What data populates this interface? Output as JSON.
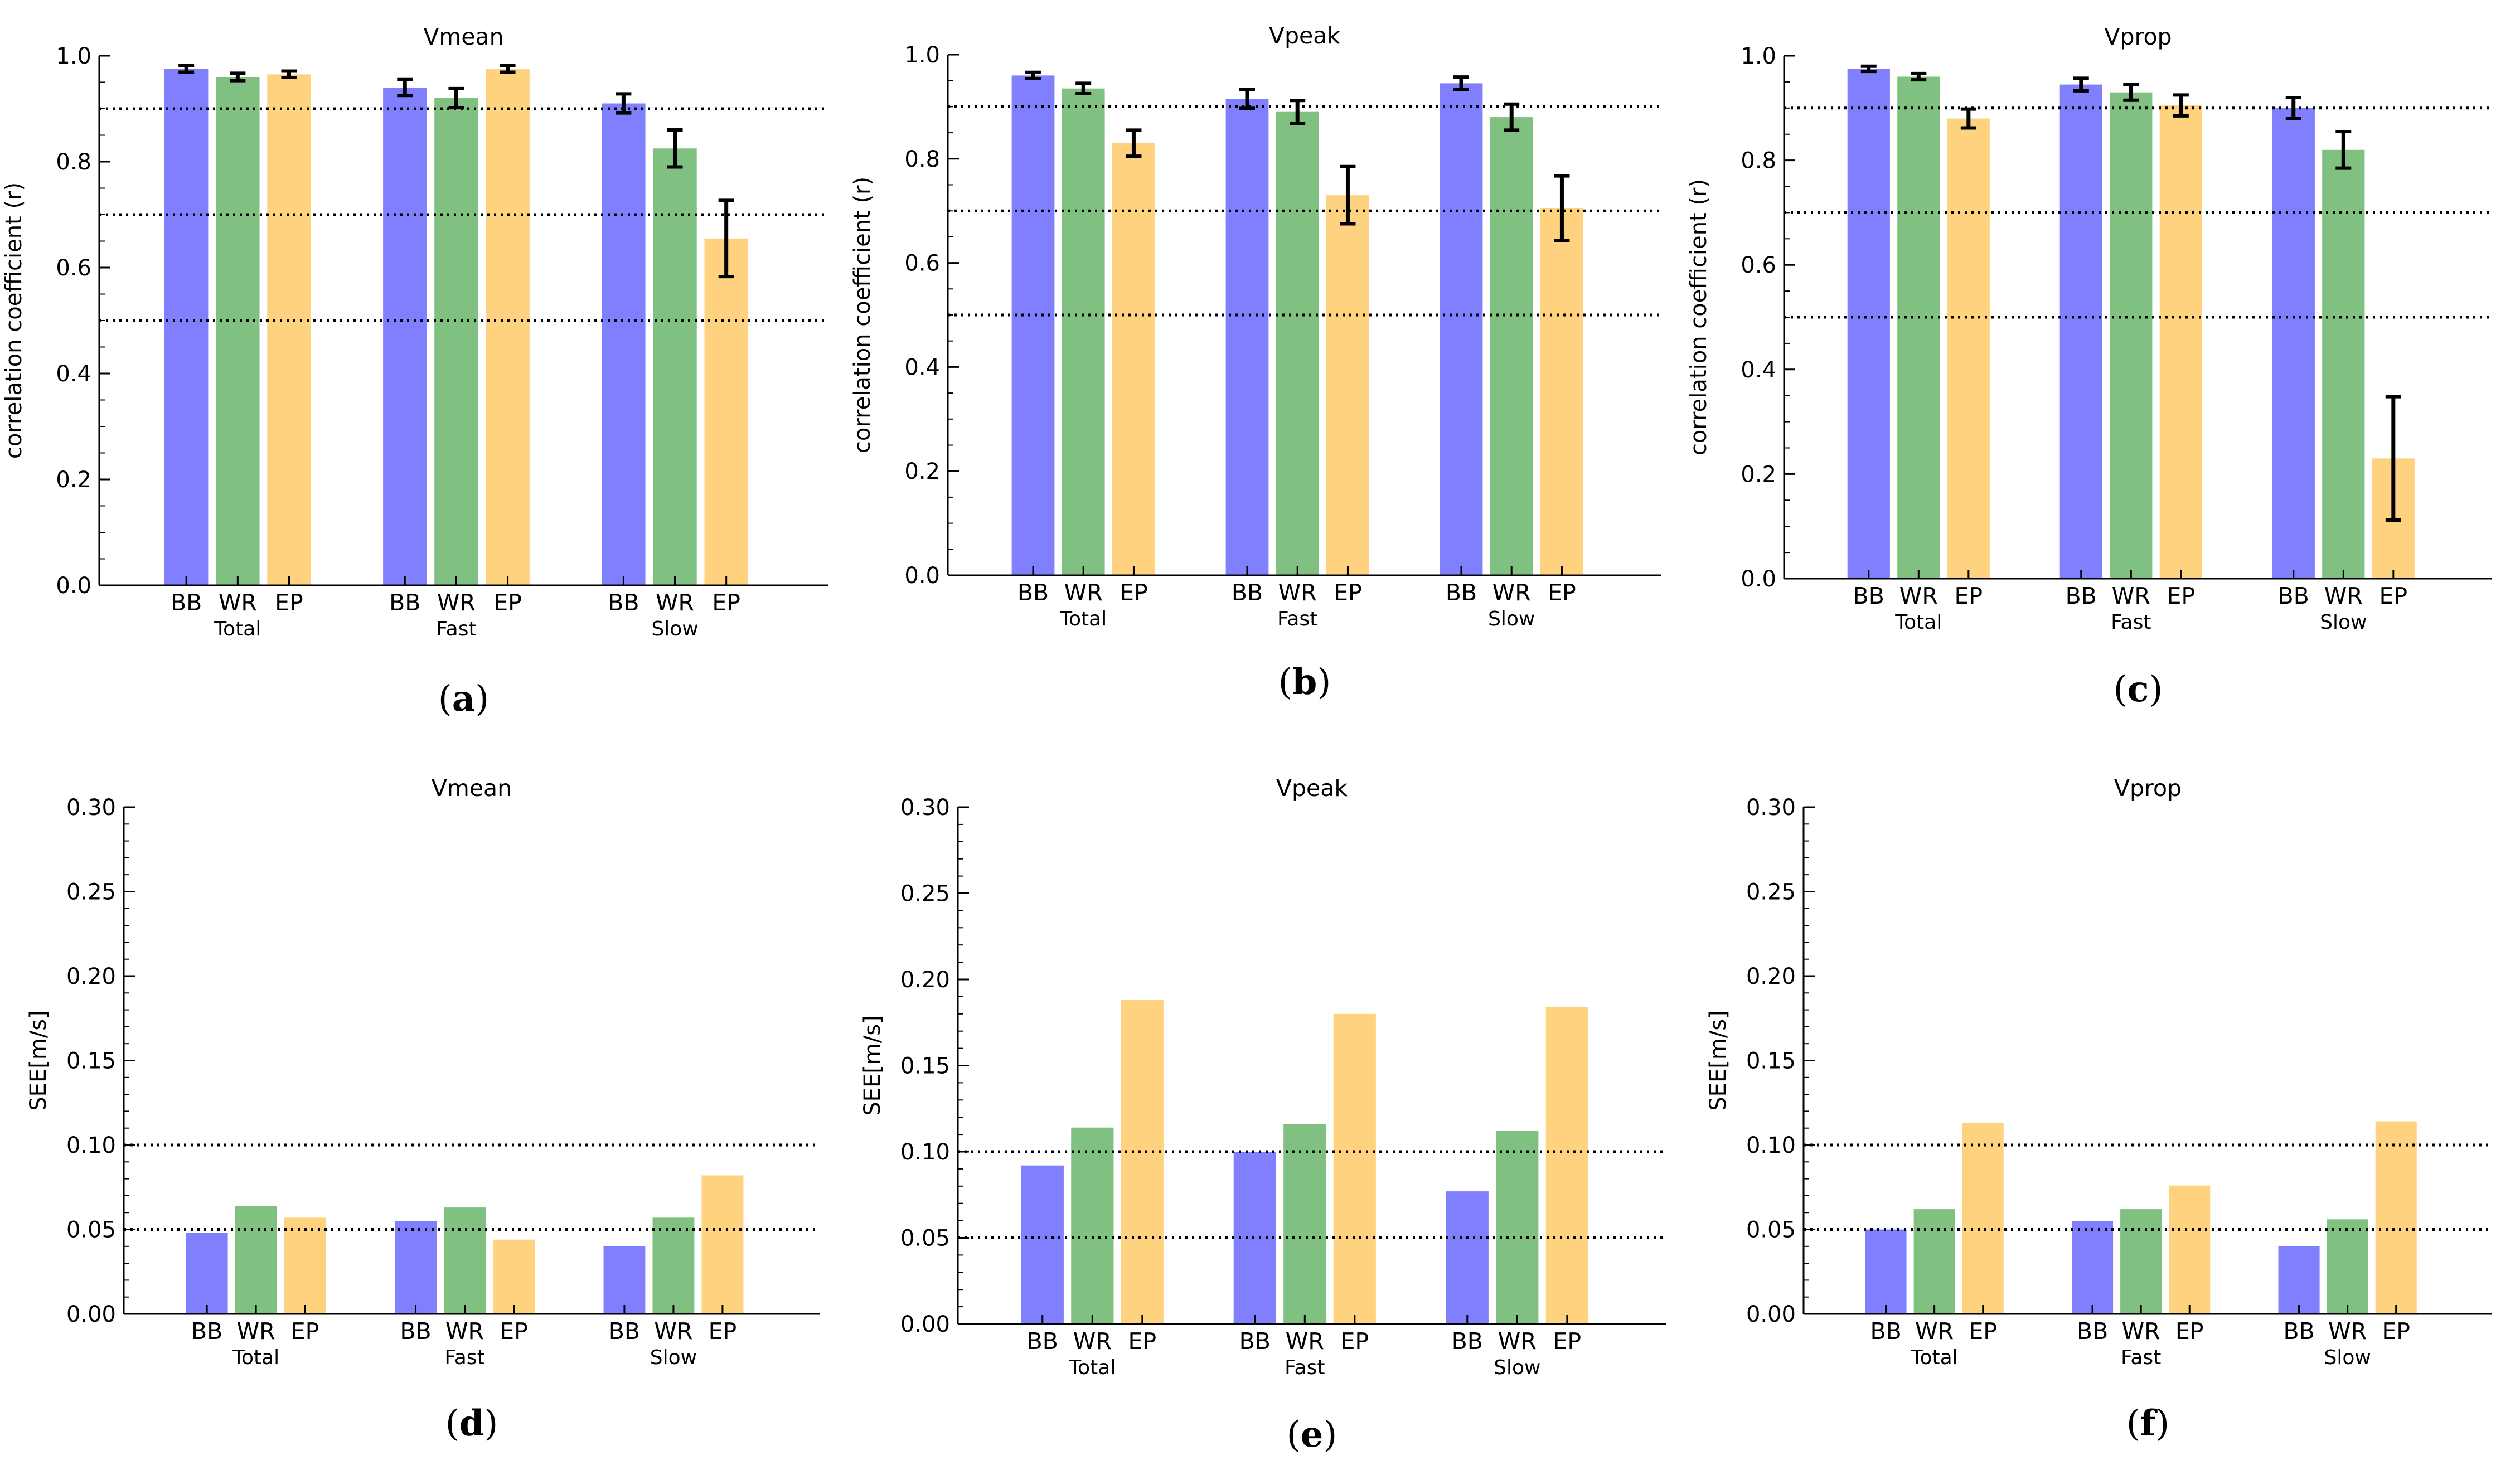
{
  "colors": {
    "BB": "#8080ff",
    "WR": "#80c080",
    "EP": "#ffd280",
    "errorbar": "#000000",
    "reference_line": "#000000"
  },
  "chart_data": [
    {
      "type": "bar",
      "panel_label": "a",
      "title": "Vmean",
      "xlabel": "",
      "ylabel": "correlation coefficient (r)",
      "ylim": [
        0,
        1.0
      ],
      "yticks": [
        "0.0",
        "0.2",
        "0.4",
        "0.6",
        "0.8",
        "1.0"
      ],
      "minor_tick_step": 0.05,
      "groups": [
        "Total",
        "Fast",
        "Slow"
      ],
      "categories": [
        "BB",
        "WR",
        "EP"
      ],
      "series": [
        {
          "name": "BB",
          "values": [
            0.975,
            0.94,
            0.91
          ],
          "errors": [
            0.006,
            0.015,
            0.018
          ]
        },
        {
          "name": "WR",
          "values": [
            0.96,
            0.92,
            0.825
          ],
          "errors": [
            0.007,
            0.018,
            0.035
          ]
        },
        {
          "name": "EP",
          "values": [
            0.965,
            0.975,
            0.655
          ],
          "errors": [
            0.006,
            0.006,
            0.072
          ]
        }
      ],
      "reference_lines": [
        0.9,
        0.7,
        0.5
      ]
    },
    {
      "type": "bar",
      "panel_label": "b",
      "title": "Vpeak",
      "xlabel": "",
      "ylabel": "correlation coefficient (r)",
      "ylim": [
        0,
        1.0
      ],
      "yticks": [
        "0.0",
        "0.2",
        "0.4",
        "0.6",
        "0.8",
        "1.0"
      ],
      "minor_tick_step": 0.05,
      "groups": [
        "Total",
        "Fast",
        "Slow"
      ],
      "categories": [
        "BB",
        "WR",
        "EP"
      ],
      "series": [
        {
          "name": "BB",
          "values": [
            0.96,
            0.915,
            0.945
          ],
          "errors": [
            0.006,
            0.018,
            0.012
          ]
        },
        {
          "name": "WR",
          "values": [
            0.935,
            0.89,
            0.88
          ],
          "errors": [
            0.01,
            0.022,
            0.025
          ]
        },
        {
          "name": "EP",
          "values": [
            0.83,
            0.73,
            0.705
          ],
          "errors": [
            0.025,
            0.055,
            0.062
          ]
        }
      ],
      "reference_lines": [
        0.9,
        0.7,
        0.5
      ]
    },
    {
      "type": "bar",
      "panel_label": "c",
      "title": "Vprop",
      "xlabel": "",
      "ylabel": "correlation coefficient (r)",
      "ylim": [
        0,
        1.0
      ],
      "yticks": [
        "0.0",
        "0.2",
        "0.4",
        "0.6",
        "0.8",
        "1.0"
      ],
      "minor_tick_step": 0.05,
      "groups": [
        "Total",
        "Fast",
        "Slow"
      ],
      "categories": [
        "BB",
        "WR",
        "EP"
      ],
      "series": [
        {
          "name": "BB",
          "values": [
            0.975,
            0.945,
            0.9
          ],
          "errors": [
            0.005,
            0.012,
            0.02
          ]
        },
        {
          "name": "WR",
          "values": [
            0.96,
            0.93,
            0.82
          ],
          "errors": [
            0.006,
            0.015,
            0.035
          ]
        },
        {
          "name": "EP",
          "values": [
            0.88,
            0.905,
            0.23
          ],
          "errors": [
            0.018,
            0.02,
            0.118
          ]
        }
      ],
      "reference_lines": [
        0.9,
        0.7,
        0.5
      ]
    },
    {
      "type": "bar",
      "panel_label": "d",
      "title": "Vmean",
      "xlabel": "",
      "ylabel": "SEE[m/s]",
      "ylim": [
        0,
        0.3
      ],
      "yticks": [
        "0.00",
        "0.05",
        "0.10",
        "0.15",
        "0.20",
        "0.25",
        "0.30"
      ],
      "minor_tick_step": 0.01,
      "groups": [
        "Total",
        "Fast",
        "Slow"
      ],
      "categories": [
        "BB",
        "WR",
        "EP"
      ],
      "series": [
        {
          "name": "BB",
          "values": [
            0.048,
            0.055,
            0.04
          ]
        },
        {
          "name": "WR",
          "values": [
            0.064,
            0.063,
            0.057
          ]
        },
        {
          "name": "EP",
          "values": [
            0.057,
            0.044,
            0.082
          ]
        }
      ],
      "reference_lines": [
        0.1,
        0.05
      ]
    },
    {
      "type": "bar",
      "panel_label": "e",
      "title": "Vpeak",
      "xlabel": "",
      "ylabel": "SEE[m/s]",
      "ylim": [
        0,
        0.3
      ],
      "yticks": [
        "0.00",
        "0.05",
        "0.10",
        "0.15",
        "0.20",
        "0.25",
        "0.30"
      ],
      "minor_tick_step": 0.01,
      "groups": [
        "Total",
        "Fast",
        "Slow"
      ],
      "categories": [
        "BB",
        "WR",
        "EP"
      ],
      "series": [
        {
          "name": "BB",
          "values": [
            0.092,
            0.1,
            0.077
          ]
        },
        {
          "name": "WR",
          "values": [
            0.114,
            0.116,
            0.112
          ]
        },
        {
          "name": "EP",
          "values": [
            0.188,
            0.18,
            0.184
          ]
        }
      ],
      "reference_lines": [
        0.1,
        0.05
      ]
    },
    {
      "type": "bar",
      "panel_label": "f",
      "title": "Vprop",
      "xlabel": "",
      "ylabel": "SEE[m/s]",
      "ylim": [
        0,
        0.3
      ],
      "yticks": [
        "0.00",
        "0.05",
        "0.10",
        "0.15",
        "0.20",
        "0.25",
        "0.30"
      ],
      "minor_tick_step": 0.01,
      "groups": [
        "Total",
        "Fast",
        "Slow"
      ],
      "categories": [
        "BB",
        "WR",
        "EP"
      ],
      "series": [
        {
          "name": "BB",
          "values": [
            0.05,
            0.055,
            0.04
          ]
        },
        {
          "name": "WR",
          "values": [
            0.062,
            0.062,
            0.056
          ]
        },
        {
          "name": "EP",
          "values": [
            0.113,
            0.076,
            0.114
          ]
        }
      ],
      "reference_lines": [
        0.1,
        0.05
      ]
    }
  ]
}
